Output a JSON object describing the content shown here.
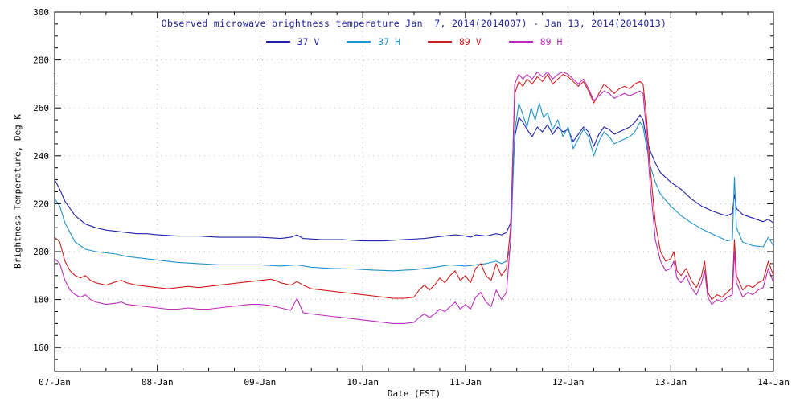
{
  "chart_data": {
    "type": "line",
    "title": "Observed microwave brightness temperature Jan  7, 2014(2014007) - Jan 13, 2014(2014013)",
    "title_color": "#1f1f9e",
    "xlabel": "Date (EST)",
    "ylabel": "Brightness Temperature, Deg K",
    "xlim": [
      0,
      7
    ],
    "ylim": [
      150,
      300
    ],
    "yticks": [
      160,
      180,
      200,
      220,
      240,
      260,
      280,
      300
    ],
    "xticklabels": [
      "07-Jan",
      "08-Jan",
      "09-Jan",
      "10-Jan",
      "11-Jan",
      "12-Jan",
      "13-Jan",
      "14-Jan"
    ],
    "x_unit": "days since 07-Jan-2014 00:00 EST",
    "grid": "dotted-major",
    "legend_position": "top-center-inside",
    "series": [
      {
        "name": "37 V",
        "color": "#2222aa",
        "x": [
          0,
          0.05,
          0.1,
          0.2,
          0.3,
          0.4,
          0.5,
          0.6,
          0.7,
          0.8,
          0.9,
          1.0,
          1.2,
          1.4,
          1.6,
          1.8,
          2.0,
          2.2,
          2.3,
          2.36,
          2.42,
          2.6,
          2.8,
          3.0,
          3.2,
          3.4,
          3.6,
          3.8,
          3.9,
          4.0,
          4.05,
          4.1,
          4.2,
          4.3,
          4.35,
          4.4,
          4.44,
          4.48,
          4.52,
          4.56,
          4.6,
          4.65,
          4.7,
          4.75,
          4.8,
          4.85,
          4.9,
          4.95,
          5.0,
          5.05,
          5.1,
          5.15,
          5.2,
          5.25,
          5.3,
          5.35,
          5.4,
          5.45,
          5.5,
          5.55,
          5.6,
          5.65,
          5.7,
          5.73,
          5.76,
          5.8,
          5.85,
          5.9,
          6.0,
          6.1,
          6.2,
          6.3,
          6.4,
          6.5,
          6.55,
          6.6,
          6.62,
          6.64,
          6.7,
          6.8,
          6.9,
          6.95,
          7.0
        ],
        "y": [
          230,
          226,
          221,
          215,
          211.5,
          210,
          209,
          208.5,
          208,
          207.5,
          207.5,
          207,
          206.5,
          206.5,
          206,
          206,
          206,
          205.5,
          206,
          207,
          205.5,
          205,
          205,
          204.5,
          204.5,
          205,
          205.5,
          206.5,
          207,
          206.5,
          206,
          207,
          206.5,
          207.5,
          207,
          208,
          212,
          248,
          256,
          254,
          251,
          248,
          252,
          250,
          253,
          249,
          252,
          250,
          251,
          246,
          249,
          252,
          250,
          244,
          249,
          252,
          251,
          249,
          250,
          251,
          252,
          254,
          257,
          255,
          248,
          242,
          237,
          233,
          229,
          226,
          222,
          219,
          217,
          215.5,
          215,
          216,
          224,
          218,
          215.5,
          214,
          212.5,
          213.5,
          212
        ]
      },
      {
        "name": "37 H",
        "color": "#2093cc",
        "x": [
          0,
          0.05,
          0.1,
          0.2,
          0.3,
          0.4,
          0.5,
          0.6,
          0.7,
          0.8,
          0.9,
          1.0,
          1.2,
          1.4,
          1.6,
          1.8,
          2.0,
          2.2,
          2.36,
          2.5,
          2.7,
          2.9,
          3.1,
          3.3,
          3.5,
          3.7,
          3.85,
          4.0,
          4.1,
          4.2,
          4.3,
          4.35,
          4.4,
          4.44,
          4.48,
          4.52,
          4.56,
          4.6,
          4.64,
          4.68,
          4.72,
          4.76,
          4.8,
          4.85,
          4.9,
          4.95,
          5.0,
          5.05,
          5.1,
          5.15,
          5.2,
          5.25,
          5.3,
          5.35,
          5.4,
          5.45,
          5.5,
          5.55,
          5.6,
          5.65,
          5.7,
          5.73,
          5.76,
          5.8,
          5.85,
          5.9,
          6.0,
          6.1,
          6.2,
          6.3,
          6.4,
          6.5,
          6.55,
          6.6,
          6.62,
          6.64,
          6.7,
          6.8,
          6.9,
          6.95,
          7.0
        ],
        "y": [
          222,
          219,
          212,
          204,
          201,
          200,
          199.5,
          199,
          198,
          197.5,
          197,
          196.5,
          195.5,
          195,
          194.5,
          194.5,
          194.5,
          194,
          194.5,
          193.5,
          193,
          192.8,
          192.3,
          192,
          192.5,
          193.5,
          194.5,
          194,
          194.5,
          195,
          196,
          195,
          196,
          202,
          250,
          262,
          257,
          252,
          260,
          255,
          262,
          256,
          258,
          251,
          255,
          248,
          252,
          243,
          247,
          251,
          248,
          240,
          246,
          250,
          248,
          245,
          246,
          247,
          248,
          250,
          254,
          252,
          245,
          236,
          229,
          224,
          219,
          215,
          212,
          209.5,
          207.5,
          205.5,
          204.5,
          205,
          231,
          210,
          204,
          202.5,
          202,
          206,
          202.5
        ]
      },
      {
        "name": "89 V",
        "color": "#cc2020",
        "x": [
          0,
          0.05,
          0.1,
          0.15,
          0.2,
          0.25,
          0.3,
          0.35,
          0.4,
          0.5,
          0.6,
          0.65,
          0.7,
          0.8,
          0.9,
          1.0,
          1.1,
          1.2,
          1.3,
          1.4,
          1.5,
          1.6,
          1.7,
          1.8,
          1.9,
          2.0,
          2.1,
          2.15,
          2.2,
          2.3,
          2.36,
          2.42,
          2.5,
          2.6,
          2.7,
          2.8,
          2.9,
          3.0,
          3.1,
          3.2,
          3.3,
          3.4,
          3.5,
          3.55,
          3.6,
          3.65,
          3.7,
          3.75,
          3.8,
          3.85,
          3.9,
          3.95,
          4.0,
          4.05,
          4.1,
          4.15,
          4.2,
          4.25,
          4.3,
          4.35,
          4.4,
          4.44,
          4.48,
          4.52,
          4.56,
          4.6,
          4.65,
          4.7,
          4.75,
          4.8,
          4.85,
          4.9,
          4.95,
          5.0,
          5.05,
          5.1,
          5.15,
          5.2,
          5.25,
          5.3,
          5.35,
          5.4,
          5.45,
          5.5,
          5.55,
          5.6,
          5.65,
          5.7,
          5.73,
          5.76,
          5.8,
          5.85,
          5.9,
          5.95,
          6.0,
          6.03,
          6.06,
          6.1,
          6.15,
          6.2,
          6.25,
          6.3,
          6.33,
          6.36,
          6.4,
          6.45,
          6.5,
          6.55,
          6.6,
          6.62,
          6.64,
          6.7,
          6.75,
          6.8,
          6.85,
          6.9,
          6.95,
          7.0
        ],
        "y": [
          206,
          204,
          196,
          192,
          190,
          189,
          190,
          188,
          187,
          186,
          187.5,
          188,
          187,
          186,
          185.5,
          185,
          184.5,
          185,
          185.5,
          185,
          185.5,
          186,
          186.5,
          187,
          187.5,
          188,
          188.5,
          188,
          187,
          186,
          187.5,
          186,
          184.5,
          184,
          183.5,
          183,
          182.5,
          182,
          181.5,
          181,
          180.5,
          180.5,
          181,
          184,
          186,
          184,
          186,
          189,
          187,
          190,
          192,
          188,
          190,
          187,
          193,
          195,
          190,
          188,
          195,
          190,
          193,
          210,
          266,
          271,
          269,
          272,
          270,
          273,
          271,
          274,
          270,
          272,
          274,
          273,
          271,
          269,
          271,
          267,
          262,
          266,
          270,
          268,
          266,
          268,
          269,
          268,
          270,
          271,
          270,
          258,
          235,
          212,
          200,
          196,
          197,
          200,
          192,
          190,
          193,
          188,
          185,
          190,
          196,
          183,
          180,
          182,
          181,
          183,
          185,
          205,
          190,
          184,
          186,
          185,
          187,
          188,
          196,
          190
        ]
      },
      {
        "name": "89 H",
        "color": "#bb2cbb",
        "x": [
          0,
          0.05,
          0.1,
          0.15,
          0.2,
          0.25,
          0.3,
          0.35,
          0.4,
          0.5,
          0.6,
          0.65,
          0.7,
          0.8,
          0.9,
          1.0,
          1.1,
          1.2,
          1.3,
          1.4,
          1.5,
          1.6,
          1.7,
          1.8,
          1.9,
          2.0,
          2.1,
          2.15,
          2.2,
          2.3,
          2.36,
          2.42,
          2.5,
          2.6,
          2.7,
          2.8,
          2.9,
          3.0,
          3.1,
          3.2,
          3.3,
          3.4,
          3.5,
          3.55,
          3.6,
          3.65,
          3.7,
          3.75,
          3.8,
          3.85,
          3.9,
          3.95,
          4.0,
          4.05,
          4.1,
          4.15,
          4.2,
          4.25,
          4.3,
          4.35,
          4.4,
          4.44,
          4.48,
          4.52,
          4.56,
          4.6,
          4.65,
          4.7,
          4.75,
          4.8,
          4.85,
          4.9,
          4.95,
          5.0,
          5.05,
          5.1,
          5.15,
          5.2,
          5.25,
          5.3,
          5.35,
          5.4,
          5.45,
          5.5,
          5.55,
          5.6,
          5.65,
          5.7,
          5.73,
          5.76,
          5.8,
          5.85,
          5.9,
          5.95,
          6.0,
          6.03,
          6.06,
          6.1,
          6.15,
          6.2,
          6.25,
          6.3,
          6.33,
          6.36,
          6.4,
          6.45,
          6.5,
          6.55,
          6.6,
          6.62,
          6.64,
          6.7,
          6.75,
          6.8,
          6.85,
          6.9,
          6.95,
          7.0
        ],
        "y": [
          197,
          195,
          188,
          184,
          182,
          181,
          182,
          180,
          179,
          178,
          178.5,
          179,
          178,
          177.5,
          177,
          176.5,
          176,
          176,
          176.5,
          176,
          176,
          176.5,
          177,
          177.5,
          178,
          178,
          177.5,
          177,
          176.5,
          175.5,
          180.5,
          174.5,
          174,
          173.5,
          173,
          172.5,
          172,
          171.5,
          171,
          170.5,
          170,
          170,
          170.5,
          172.5,
          174,
          172.5,
          174,
          176,
          175,
          177,
          179,
          176,
          178,
          176,
          181,
          183,
          179,
          177,
          184,
          180,
          183,
          205,
          270,
          274,
          272,
          274,
          272,
          275,
          273,
          275,
          272,
          274,
          275,
          274,
          272,
          270,
          272,
          268,
          263,
          265,
          267,
          266,
          264,
          265,
          266,
          265,
          266,
          267,
          266,
          252,
          228,
          205,
          196,
          192,
          193,
          196,
          189,
          187,
          190,
          185,
          182,
          187,
          192,
          181,
          178,
          180,
          179,
          181,
          182,
          200,
          187,
          181,
          183,
          182,
          184,
          185,
          193,
          187
        ]
      }
    ]
  }
}
